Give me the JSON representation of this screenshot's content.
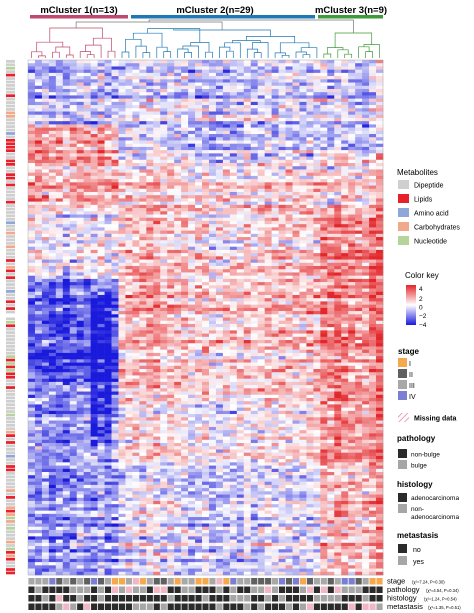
{
  "figure": {
    "clusters": [
      {
        "label": "mCluster 1(n=13)",
        "color": "#c0476e",
        "n": 13
      },
      {
        "label": "mCluster 2(n=29)",
        "color": "#1f78b4",
        "n": 29
      },
      {
        "label": "mCluster 3(n=9)",
        "color": "#3f9a3a",
        "n": 9
      }
    ],
    "metabolites_legend": {
      "title": "Metabolites",
      "items": [
        {
          "label": "Dipeptide",
          "color": "#cfcfcf"
        },
        {
          "label": "Lipids",
          "color": "#e8202a"
        },
        {
          "label": "Amino acid",
          "color": "#8fa6d8"
        },
        {
          "label": "Carbohydrates",
          "color": "#f1a98a"
        },
        {
          "label": "Nucleotide",
          "color": "#b6d39a"
        }
      ]
    },
    "color_key": {
      "title": "Color key",
      "ticks": [
        "4",
        "2",
        "0",
        "−2",
        "−4"
      ],
      "low_color": "#1a1adc",
      "mid_color": "#ffffff",
      "high_color": "#e3262a"
    },
    "stage_legend": {
      "title": "stage",
      "items": [
        {
          "label": "I",
          "color": "#f4a94e"
        },
        {
          "label": "II",
          "color": "#606060"
        },
        {
          "label": "III",
          "color": "#a8a8a8"
        },
        {
          "label": "IV",
          "color": "#7b7ed1"
        }
      ]
    },
    "missing_legend": {
      "label": "Missing data",
      "color": "#f2b7c5"
    },
    "pathology_legend": {
      "title": "pathology",
      "items": [
        {
          "label": "non-bulge",
          "color": "#2b2b2b"
        },
        {
          "label": "bulge",
          "color": "#a6a6a6"
        }
      ]
    },
    "histology_legend": {
      "title": "histology",
      "items": [
        {
          "label": "adenocarcinoma",
          "color": "#2b2b2b"
        },
        {
          "label": "non-\nadenocarcinoma",
          "color": "#a6a6a6"
        }
      ]
    },
    "metastasis_legend": {
      "title": "metastasis",
      "items": [
        {
          "label": "no",
          "color": "#2b2b2b"
        },
        {
          "label": "yes",
          "color": "#a6a6a6"
        }
      ]
    },
    "annotation_rows": [
      {
        "label": "stage",
        "stat": "(χ²=7.24, P=0.30)"
      },
      {
        "label": "pathology",
        "stat": "(χ²=4.54, P=0.34)"
      },
      {
        "label": "histology",
        "stat": "(χ²=1.24, P=0.54)"
      },
      {
        "label": "metastasis",
        "stat": "(χ²=1.35, P=0.51)"
      }
    ]
  },
  "chart_data": {
    "type": "heatmap",
    "columns": 51,
    "column_groups": [
      {
        "name": "mCluster 1",
        "count": 13
      },
      {
        "name": "mCluster 2",
        "count": 29
      },
      {
        "name": "mCluster 3",
        "count": 9
      }
    ],
    "value_range": [
      -4,
      4
    ],
    "pattern": {
      "mCluster 1": "mostly low (blue) in lower-middle rows, high (red) in upper rows",
      "mCluster 2": "mixed, moderately high (red) in middle rows",
      "mCluster 3": "high (red) in middle and lower rows"
    }
  }
}
